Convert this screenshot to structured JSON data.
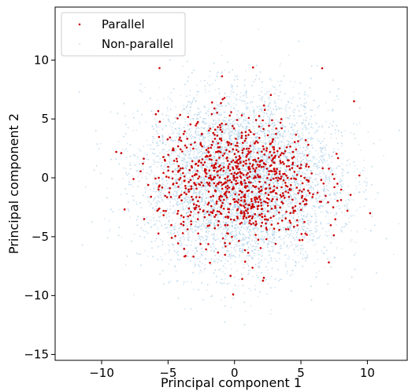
{
  "chart_data": {
    "type": "scatter",
    "title": "",
    "xlabel": "Principal component 1",
    "ylabel": "Principal component 2",
    "xlim": [
      -13.5,
      13
    ],
    "ylim": [
      -15.5,
      14.5
    ],
    "x_ticks": [
      -10,
      -5,
      0,
      5,
      10
    ],
    "y_ticks": [
      -15,
      -10,
      -5,
      0,
      5,
      10
    ],
    "x_tick_labels": [
      "−10",
      "−5",
      "0",
      "5",
      "10"
    ],
    "y_tick_labels": [
      "−15",
      "−10",
      "−5",
      "0",
      "5",
      "10"
    ],
    "grid": false,
    "legend": {
      "placement": "top-left",
      "entries": [
        {
          "label": "Parallel",
          "color": "#cc0000"
        },
        {
          "label": "Non-parallel",
          "color": "#a6cbe6"
        }
      ]
    },
    "series": [
      {
        "name": "Non-parallel",
        "color": "#a6cbe6",
        "distribution": {
          "center": [
            0.5,
            -0.3
          ],
          "std": [
            3.6,
            3.6
          ],
          "count": 9000
        }
      },
      {
        "name": "Parallel",
        "color": "#cc0000",
        "distribution": {
          "center": [
            0.3,
            -0.3
          ],
          "std": [
            3.0,
            2.7
          ],
          "count": 900
        },
        "outliers": [
          {
            "x": -8.9,
            "y": 2.2
          },
          {
            "x": -7.6,
            "y": -0.1
          },
          {
            "x": -6.8,
            "y": -3.5
          },
          {
            "x": 6.6,
            "y": 9.3
          },
          {
            "x": 9.0,
            "y": 6.5
          },
          {
            "x": -0.1,
            "y": -9.9
          },
          {
            "x": 9.4,
            "y": 0.2
          },
          {
            "x": 8.5,
            "y": -2.8
          },
          {
            "x": 4.9,
            "y": -5.3
          }
        ]
      }
    ]
  }
}
